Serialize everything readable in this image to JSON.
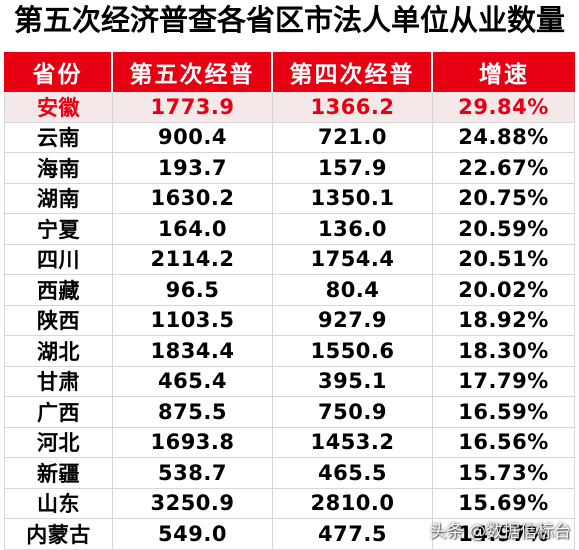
{
  "chart_data": {
    "type": "table",
    "title": "第五次经济普查各省区市法人单位从业数量",
    "columns": [
      "省份",
      "第五次经普",
      "第四次经普",
      "增速"
    ],
    "rows": [
      [
        "安徽",
        "1773.9",
        "1366.2",
        "29.84%"
      ],
      [
        "云南",
        "900.4",
        "721.0",
        "24.88%"
      ],
      [
        "海南",
        "193.7",
        "157.9",
        "22.67%"
      ],
      [
        "湖南",
        "1630.2",
        "1350.1",
        "20.75%"
      ],
      [
        "宁夏",
        "164.0",
        "136.0",
        "20.59%"
      ],
      [
        "四川",
        "2114.2",
        "1754.4",
        "20.51%"
      ],
      [
        "西藏",
        "96.5",
        "80.4",
        "20.02%"
      ],
      [
        "陕西",
        "1103.5",
        "927.9",
        "18.92%"
      ],
      [
        "湖北",
        "1834.4",
        "1550.6",
        "18.30%"
      ],
      [
        "甘肃",
        "465.4",
        "395.1",
        "17.79%"
      ],
      [
        "广西",
        "875.5",
        "750.9",
        "16.59%"
      ],
      [
        "河北",
        "1693.8",
        "1453.2",
        "16.56%"
      ],
      [
        "新疆",
        "538.7",
        "465.5",
        "15.73%"
      ],
      [
        "山东",
        "3250.9",
        "2810.0",
        "15.69%"
      ],
      [
        "内蒙古",
        "549.0",
        "477.5",
        "14.97%"
      ]
    ]
  },
  "highlight_row": 0,
  "colors": {
    "header_bg": "#e60012",
    "header_text": "#ffffff",
    "text": "#000000",
    "highlight_text": "#e60012",
    "highlight_bg": "#f4e8e8"
  },
  "watermark": "头条 @数据信标台"
}
